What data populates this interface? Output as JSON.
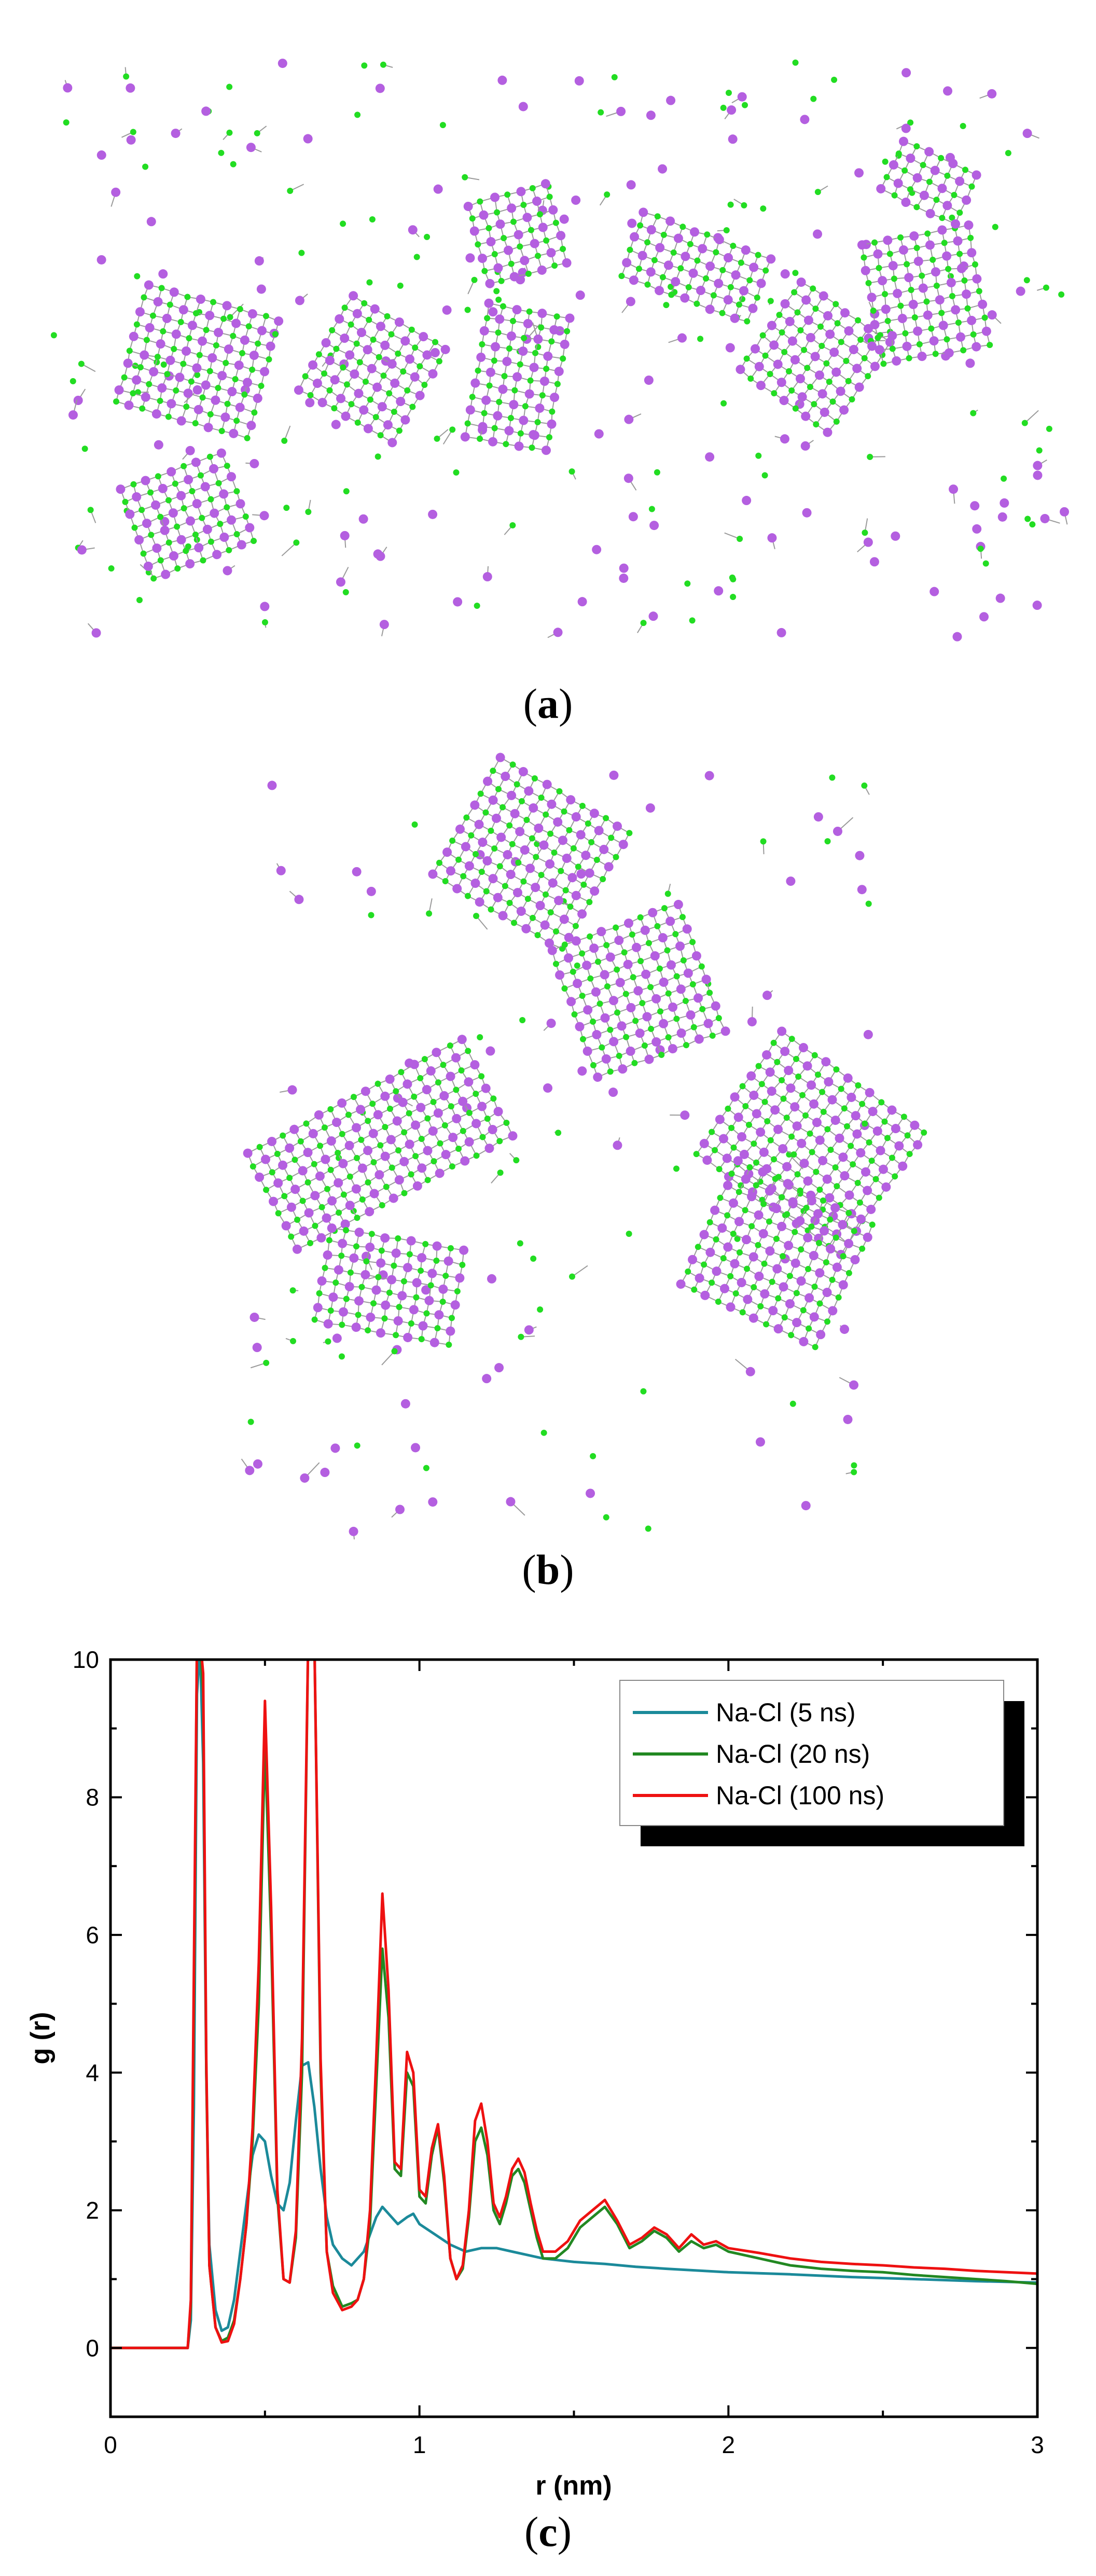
{
  "figure": {
    "panel_a": {
      "caption_open": "(",
      "caption_letter": "a",
      "caption_close": ")"
    },
    "panel_b": {
      "caption_open": "(",
      "caption_letter": "b",
      "caption_close": ")"
    },
    "panel_c": {
      "caption_open": "(",
      "caption_letter": "c",
      "caption_close": ")"
    },
    "atom_colors": {
      "sodium": "#b45fe0",
      "chlorine": "#22dd22",
      "bond": "#9a9a9a"
    }
  },
  "chart_data": {
    "type": "line",
    "title": "",
    "xlabel": "r (nm)",
    "ylabel": "g (r)",
    "xlim": [
      0,
      3
    ],
    "ylim": [
      -1,
      10
    ],
    "xticks": [
      0,
      1,
      2,
      3
    ],
    "yticks": [
      0,
      2,
      4,
      6,
      8,
      10
    ],
    "grid": false,
    "legend_position": "top-right",
    "series": [
      {
        "name": "Na-Cl (5 ns)",
        "color": "#1b8a9a",
        "x": [
          0,
          0.25,
          0.26,
          0.27,
          0.28,
          0.29,
          0.3,
          0.31,
          0.32,
          0.34,
          0.36,
          0.38,
          0.4,
          0.42,
          0.44,
          0.46,
          0.48,
          0.5,
          0.52,
          0.54,
          0.56,
          0.58,
          0.6,
          0.62,
          0.64,
          0.66,
          0.68,
          0.7,
          0.72,
          0.75,
          0.78,
          0.82,
          0.86,
          0.88,
          0.9,
          0.93,
          0.96,
          0.98,
          1.0,
          1.05,
          1.1,
          1.15,
          1.2,
          1.25,
          1.3,
          1.35,
          1.4,
          1.5,
          1.6,
          1.7,
          1.8,
          2.0,
          2.2,
          2.4,
          2.6,
          2.8,
          3.0
        ],
        "y": [
          0,
          0,
          0.4,
          3.5,
          9.5,
          10.2,
          8.5,
          4.0,
          1.5,
          0.55,
          0.25,
          0.3,
          0.7,
          1.4,
          2.1,
          2.8,
          3.1,
          3.0,
          2.5,
          2.1,
          2.0,
          2.4,
          3.3,
          4.1,
          4.15,
          3.5,
          2.6,
          1.9,
          1.5,
          1.3,
          1.2,
          1.4,
          1.9,
          2.05,
          1.95,
          1.8,
          1.9,
          1.95,
          1.8,
          1.65,
          1.5,
          1.4,
          1.45,
          1.45,
          1.4,
          1.35,
          1.3,
          1.25,
          1.22,
          1.18,
          1.15,
          1.1,
          1.07,
          1.03,
          1.0,
          0.97,
          0.95
        ]
      },
      {
        "name": "Na-Cl (20 ns)",
        "color": "#228822",
        "x": [
          0,
          0.25,
          0.26,
          0.27,
          0.28,
          0.29,
          0.3,
          0.31,
          0.32,
          0.34,
          0.36,
          0.38,
          0.4,
          0.42,
          0.44,
          0.46,
          0.48,
          0.5,
          0.52,
          0.54,
          0.56,
          0.58,
          0.6,
          0.62,
          0.64,
          0.66,
          0.68,
          0.7,
          0.72,
          0.75,
          0.78,
          0.8,
          0.82,
          0.84,
          0.86,
          0.88,
          0.9,
          0.92,
          0.94,
          0.96,
          0.98,
          1.0,
          1.02,
          1.04,
          1.06,
          1.08,
          1.1,
          1.12,
          1.14,
          1.16,
          1.18,
          1.2,
          1.22,
          1.24,
          1.26,
          1.28,
          1.3,
          1.32,
          1.34,
          1.36,
          1.38,
          1.4,
          1.44,
          1.48,
          1.52,
          1.56,
          1.6,
          1.64,
          1.68,
          1.72,
          1.76,
          1.8,
          1.84,
          1.88,
          1.92,
          1.96,
          2.0,
          2.1,
          2.2,
          2.3,
          2.4,
          2.5,
          2.6,
          2.7,
          2.8,
          2.9,
          3.0
        ],
        "y": [
          0,
          0,
          0.6,
          5.0,
          10.3,
          10.3,
          9.5,
          4.0,
          1.2,
          0.3,
          0.1,
          0.15,
          0.4,
          1.0,
          1.8,
          3.0,
          5.0,
          8.8,
          6.0,
          2.2,
          1.0,
          0.95,
          1.6,
          4.0,
          10.3,
          10.3,
          4.0,
          1.4,
          0.9,
          0.6,
          0.65,
          0.7,
          1.0,
          1.8,
          3.8,
          5.8,
          4.8,
          2.6,
          2.5,
          4.0,
          3.8,
          2.2,
          2.1,
          2.8,
          3.2,
          2.4,
          1.3,
          1.0,
          1.15,
          1.9,
          3.0,
          3.2,
          2.8,
          2.0,
          1.8,
          2.1,
          2.5,
          2.6,
          2.4,
          2.0,
          1.6,
          1.3,
          1.3,
          1.45,
          1.75,
          1.9,
          2.05,
          1.8,
          1.45,
          1.55,
          1.7,
          1.6,
          1.4,
          1.55,
          1.45,
          1.5,
          1.4,
          1.3,
          1.2,
          1.15,
          1.12,
          1.1,
          1.06,
          1.03,
          1.0,
          0.97,
          0.93
        ]
      },
      {
        "name": "Na-Cl (100 ns)",
        "color": "#ee1111",
        "x": [
          0,
          0.25,
          0.26,
          0.27,
          0.28,
          0.29,
          0.3,
          0.31,
          0.32,
          0.34,
          0.36,
          0.38,
          0.4,
          0.42,
          0.44,
          0.46,
          0.48,
          0.5,
          0.52,
          0.54,
          0.56,
          0.58,
          0.6,
          0.62,
          0.64,
          0.66,
          0.68,
          0.7,
          0.72,
          0.75,
          0.78,
          0.8,
          0.82,
          0.84,
          0.86,
          0.88,
          0.9,
          0.92,
          0.94,
          0.96,
          0.98,
          1.0,
          1.02,
          1.04,
          1.06,
          1.08,
          1.1,
          1.12,
          1.14,
          1.16,
          1.18,
          1.2,
          1.22,
          1.24,
          1.26,
          1.28,
          1.3,
          1.32,
          1.34,
          1.36,
          1.38,
          1.4,
          1.44,
          1.48,
          1.52,
          1.56,
          1.6,
          1.64,
          1.68,
          1.72,
          1.76,
          1.8,
          1.84,
          1.88,
          1.92,
          1.96,
          2.0,
          2.1,
          2.2,
          2.3,
          2.4,
          2.5,
          2.6,
          2.7,
          2.8,
          2.9,
          3.0
        ],
        "y": [
          0,
          0,
          0.7,
          5.5,
          10.3,
          10.3,
          9.8,
          4.2,
          1.2,
          0.3,
          0.08,
          0.1,
          0.35,
          1.0,
          1.8,
          3.2,
          5.6,
          9.4,
          6.4,
          2.3,
          1.0,
          0.95,
          1.7,
          4.5,
          10.3,
          10.3,
          4.2,
          1.4,
          0.8,
          0.55,
          0.6,
          0.7,
          1.0,
          2.0,
          4.2,
          6.6,
          5.2,
          2.7,
          2.6,
          4.3,
          4.0,
          2.3,
          2.2,
          2.9,
          3.25,
          2.5,
          1.3,
          1.0,
          1.2,
          2.0,
          3.3,
          3.55,
          3.0,
          2.1,
          1.9,
          2.2,
          2.6,
          2.75,
          2.55,
          2.1,
          1.7,
          1.4,
          1.4,
          1.55,
          1.85,
          2.0,
          2.15,
          1.85,
          1.5,
          1.6,
          1.75,
          1.65,
          1.45,
          1.65,
          1.5,
          1.55,
          1.45,
          1.38,
          1.3,
          1.25,
          1.22,
          1.2,
          1.17,
          1.15,
          1.12,
          1.1,
          1.08
        ]
      }
    ]
  }
}
